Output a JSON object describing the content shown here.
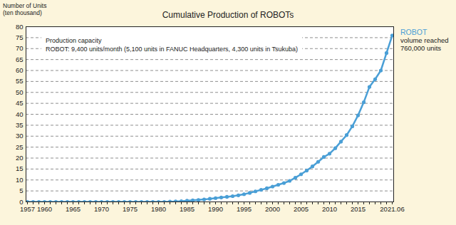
{
  "chart_data": {
    "type": "line",
    "title": "Cumulative Production of ROBOTs",
    "y_label": [
      "Number of Units",
      "(ten thousand)"
    ],
    "categories": [
      "1957",
      null,
      null,
      "1960",
      null,
      null,
      null,
      null,
      "1965",
      null,
      null,
      null,
      null,
      "1970",
      null,
      null,
      null,
      null,
      "1975",
      null,
      null,
      null,
      null,
      "1980",
      null,
      null,
      null,
      null,
      "1985",
      null,
      null,
      null,
      null,
      "1990",
      null,
      null,
      null,
      null,
      "1995",
      null,
      null,
      null,
      null,
      "2000",
      null,
      null,
      null,
      null,
      "2005",
      null,
      null,
      null,
      null,
      "2010",
      null,
      null,
      null,
      null,
      "2015",
      null,
      null,
      null,
      null,
      null,
      "2021.06"
    ],
    "series": [
      {
        "name": "ROBOT",
        "color": "#4a9fd6",
        "marker": "circle",
        "values": [
          0,
          0,
          0,
          0,
          0,
          0,
          0,
          0,
          0,
          0,
          0,
          0,
          0,
          0,
          0,
          0,
          0,
          0,
          0,
          0,
          0,
          0,
          0,
          0,
          0,
          0.1,
          0.2,
          0.3,
          0.5,
          0.7,
          0.9,
          1.1,
          1.4,
          1.7,
          2.0,
          2.3,
          2.6,
          3.0,
          3.5,
          4.1,
          4.8,
          5.5,
          6.2,
          7.0,
          7.8,
          8.6,
          9.6,
          11.0,
          12.6,
          14.3,
          16.2,
          18.3,
          20.5,
          22.0,
          24.5,
          27.5,
          30.5,
          34.5,
          39.5,
          45.5,
          52.5,
          56.0,
          60.0,
          68.0,
          76.0
        ]
      }
    ],
    "ylim": [
      0,
      80
    ],
    "yticks": [
      0,
      5,
      10,
      15,
      20,
      25,
      30,
      35,
      40,
      45,
      50,
      55,
      60,
      65,
      70,
      75,
      80
    ],
    "grid": true,
    "annotations": {
      "capacity": [
        "Production capacity",
        "ROBOT: 9,400 units/month (5,100 units in FANUC Headquarters, 4,300 units in Tsukuba)"
      ],
      "callout": [
        "volume reached",
        "760,000 units"
      ]
    }
  }
}
